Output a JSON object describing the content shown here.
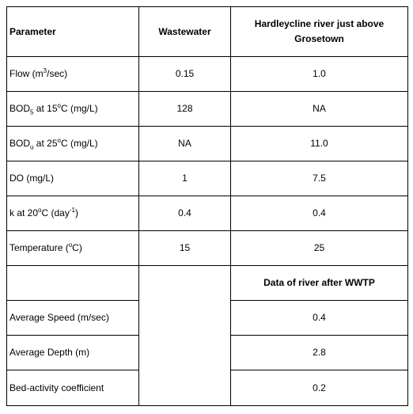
{
  "table": {
    "headers": {
      "parameter": "Parameter",
      "wastewater": "Wastewater",
      "river": "Hardleycline river just above Grosetown"
    },
    "rows": [
      {
        "label_main": "Flow (m",
        "label_sup": "3",
        "label_tail": "/sec)",
        "wastewater": "0.15",
        "river": "1.0"
      },
      {
        "label_main": "BOD",
        "label_sub": "5",
        "label_tail": " at 15",
        "label_sup": "o",
        "label_tail2": "C (mg/L)",
        "wastewater": "128",
        "river": "NA"
      },
      {
        "label_main": "BOD",
        "label_sub": "u",
        "label_tail": " at 25",
        "label_sup": "o",
        "label_tail2": "C (mg/L)",
        "wastewater": "NA",
        "river": "11.0"
      },
      {
        "label_main": "DO (mg/L)",
        "wastewater": "1",
        "river": "7.5"
      },
      {
        "label_main": "k at 20",
        "label_sup": "o",
        "label_tail": "C (day",
        "label_sup2": "-1",
        "label_tail2": ")",
        "wastewater": "0.4",
        "river": "0.4"
      },
      {
        "label_main": "Temperature (",
        "label_sup": "o",
        "label_tail": "C)",
        "wastewater": "15",
        "river": "25"
      }
    ],
    "section_header": "Data of river after WWTP",
    "river_rows": [
      {
        "label": "Average Speed (m/sec)",
        "value": "0.4"
      },
      {
        "label": "Average Depth (m)",
        "value": "2.8"
      },
      {
        "label": "Bed-activity coefficient",
        "value": "0.2"
      }
    ]
  }
}
